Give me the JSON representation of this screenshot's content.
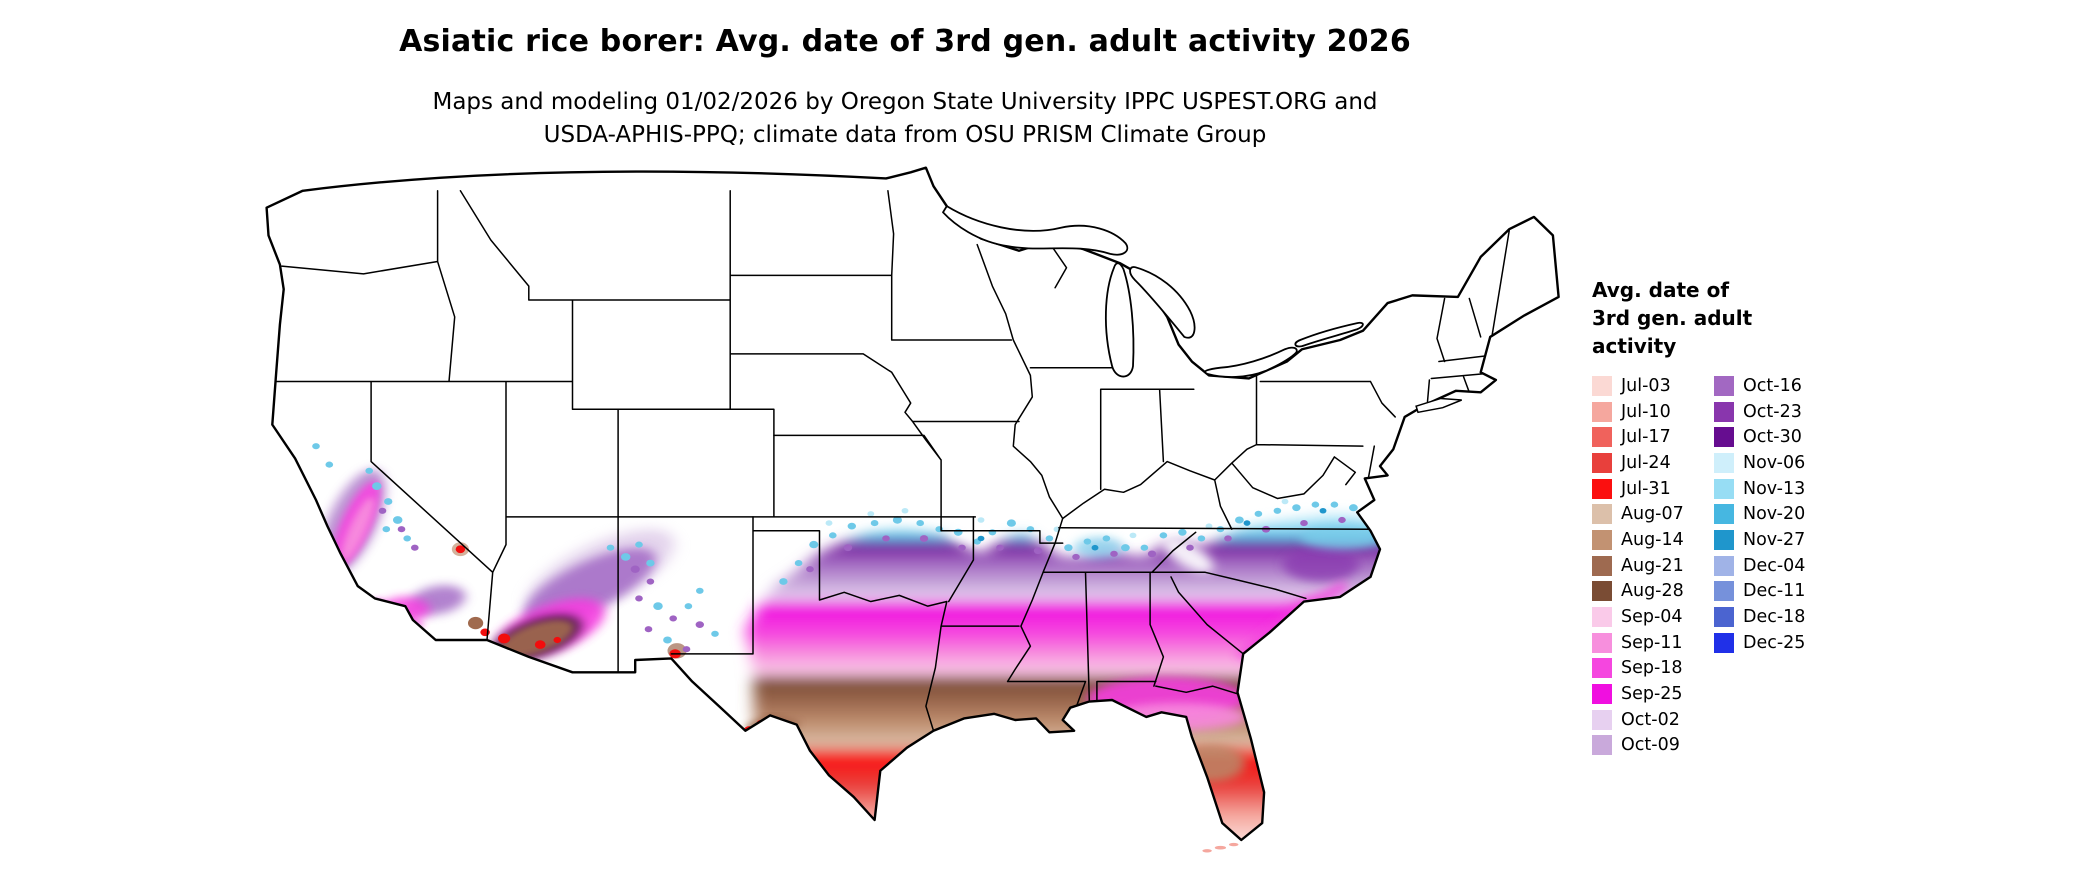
{
  "figure": {
    "title": "Asiatic rice borer: Avg. date of 3rd gen. adult activity 2026",
    "subtitle_lines": [
      "Maps and modeling 01/02/2026 by Oregon State University IPPC USPEST.ORG and",
      "USDA-APHIS-PPQ; climate data from OSU PRISM Climate Group"
    ]
  },
  "legend": {
    "title_lines": [
      "Avg. date of",
      "3rd gen. adult",
      "activity"
    ],
    "columns": [
      {
        "items": [
          {
            "label": "Jul-03",
            "color": "#fbd9d4"
          },
          {
            "label": "Jul-10",
            "color": "#f5a79e"
          },
          {
            "label": "Jul-17",
            "color": "#f0625c"
          },
          {
            "label": "Jul-24",
            "color": "#e8403c"
          },
          {
            "label": "Jul-31",
            "color": "#fb0f0f"
          },
          {
            "label": "Aug-07",
            "color": "#dcc0aa"
          },
          {
            "label": "Aug-14",
            "color": "#c29272"
          },
          {
            "label": "Aug-21",
            "color": "#9e6a50"
          },
          {
            "label": "Aug-28",
            "color": "#7a4c34"
          },
          {
            "label": "Sep-04",
            "color": "#facae9"
          },
          {
            "label": "Sep-11",
            "color": "#f78fdd"
          },
          {
            "label": "Sep-18",
            "color": "#f546df"
          },
          {
            "label": "Sep-25",
            "color": "#f00fe0"
          },
          {
            "label": "Oct-02",
            "color": "#e7d0f0"
          },
          {
            "label": "Oct-09",
            "color": "#c9a9db"
          }
        ]
      },
      {
        "items": [
          {
            "label": "Oct-16",
            "color": "#a268c2"
          },
          {
            "label": "Oct-23",
            "color": "#8936ad"
          },
          {
            "label": "Oct-30",
            "color": "#660d90"
          },
          {
            "label": "Nov-06",
            "color": "#cfeffb"
          },
          {
            "label": "Nov-13",
            "color": "#97ddf4"
          },
          {
            "label": "Nov-20",
            "color": "#46b7e1"
          },
          {
            "label": "Nov-27",
            "color": "#1f96cc"
          },
          {
            "label": "Dec-04",
            "color": "#a0b3e7"
          },
          {
            "label": "Dec-11",
            "color": "#7691db"
          },
          {
            "label": "Dec-18",
            "color": "#4b64d0"
          },
          {
            "label": "Dec-25",
            "color": "#2030e8"
          }
        ]
      }
    ]
  }
}
